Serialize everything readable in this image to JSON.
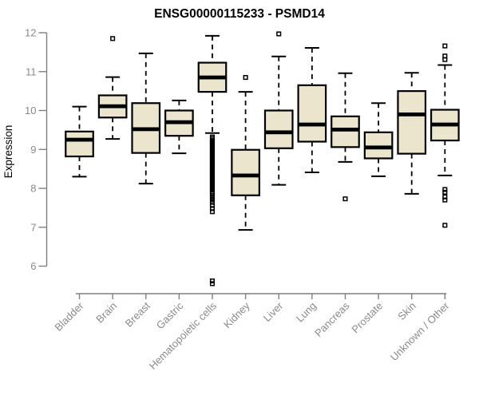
{
  "chart_data": {
    "type": "boxplot",
    "title": "ENSG00000115233 - PSMD14",
    "ylabel": "Expression",
    "xlabel": "",
    "ylim": [
      6,
      12
    ],
    "yticks": [
      6,
      7,
      8,
      9,
      10,
      11,
      12
    ],
    "grid": false,
    "legend": false,
    "categories": [
      "Bladder",
      "Brain",
      "Breast",
      "Gastric",
      "Hematopoietic cells",
      "Kidney",
      "Liver",
      "Lung",
      "Pancreas",
      "Prostate",
      "Skin",
      "Unknown / Other"
    ],
    "boxes": [
      {
        "label": "Bladder",
        "low": 8.3,
        "q1": 8.82,
        "median": 9.25,
        "q3": 9.46,
        "high": 10.1,
        "outliers": []
      },
      {
        "label": "Brain",
        "low": 9.27,
        "q1": 9.82,
        "median": 10.11,
        "q3": 10.39,
        "high": 10.86,
        "outliers": [
          11.85
        ]
      },
      {
        "label": "Breast",
        "low": 8.12,
        "q1": 8.91,
        "median": 9.52,
        "q3": 10.19,
        "high": 11.47,
        "outliers": []
      },
      {
        "label": "Gastric",
        "low": 8.9,
        "q1": 9.35,
        "median": 9.7,
        "q3": 10.0,
        "high": 10.26,
        "outliers": []
      },
      {
        "label": "Hematopoietic cells",
        "low": 9.42,
        "q1": 10.48,
        "median": 10.85,
        "q3": 11.23,
        "high": 11.92,
        "outliers": [
          9.32,
          9.28,
          9.24,
          9.2,
          9.16,
          9.12,
          9.08,
          9.04,
          9.0,
          8.96,
          8.92,
          8.88,
          8.84,
          8.8,
          8.76,
          8.72,
          8.68,
          8.64,
          8.6,
          8.56,
          8.52,
          8.48,
          8.44,
          8.4,
          8.36,
          8.32,
          8.28,
          8.24,
          8.2,
          8.16,
          8.12,
          8.08,
          8.04,
          8.0,
          7.96,
          7.92,
          7.88,
          7.82,
          7.76,
          7.7,
          7.64,
          7.56,
          7.48,
          7.4,
          5.62,
          5.55
        ]
      },
      {
        "label": "Kidney",
        "low": 6.93,
        "q1": 7.82,
        "median": 8.33,
        "q3": 8.99,
        "high": 10.48,
        "outliers": [
          10.85
        ]
      },
      {
        "label": "Liver",
        "low": 8.09,
        "q1": 9.03,
        "median": 9.44,
        "q3": 10.0,
        "high": 11.39,
        "outliers": [
          11.97
        ]
      },
      {
        "label": "Lung",
        "low": 8.41,
        "q1": 9.2,
        "median": 9.64,
        "q3": 10.65,
        "high": 11.61,
        "outliers": []
      },
      {
        "label": "Pancreas",
        "low": 8.68,
        "q1": 9.06,
        "median": 9.51,
        "q3": 9.85,
        "high": 10.96,
        "outliers": [
          7.73
        ]
      },
      {
        "label": "Prostate",
        "low": 8.31,
        "q1": 8.77,
        "median": 9.05,
        "q3": 9.44,
        "high": 10.19,
        "outliers": []
      },
      {
        "label": "Skin",
        "low": 7.86,
        "q1": 8.89,
        "median": 9.9,
        "q3": 10.5,
        "high": 10.97,
        "outliers": []
      },
      {
        "label": "Unknown / Other",
        "low": 8.33,
        "q1": 9.23,
        "median": 9.64,
        "q3": 10.02,
        "high": 11.17,
        "outliers": [
          11.66,
          11.4,
          11.31,
          7.97,
          7.9,
          7.78,
          7.7,
          7.05
        ]
      }
    ],
    "colors": {
      "box_fill": "#EBE5CD",
      "box_border": "#000000",
      "median": "#000000",
      "whisker": "#000000",
      "axis": "#7f7f7f",
      "tick_text": "#8a8a8a",
      "title_text": "#000000"
    }
  }
}
